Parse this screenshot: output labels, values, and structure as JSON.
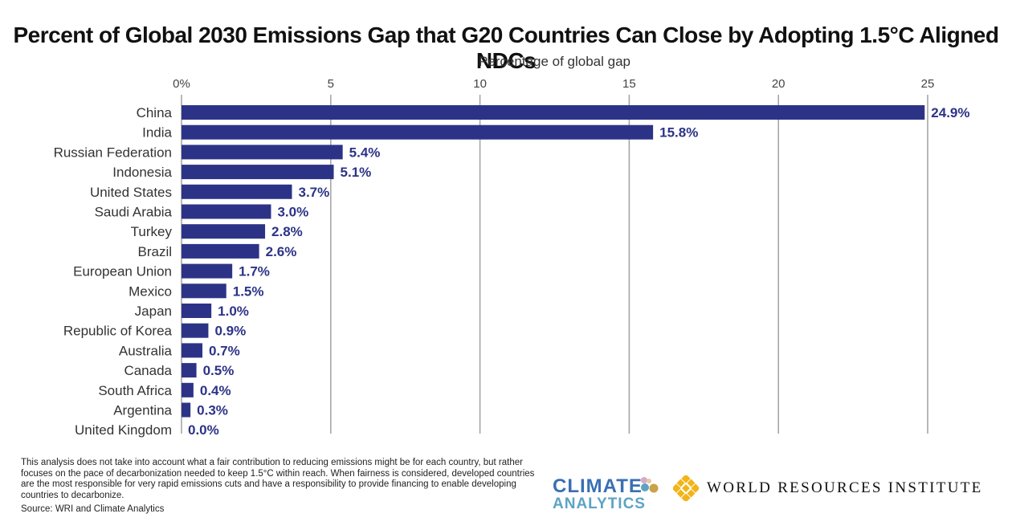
{
  "title": "Percent of Global 2030 Emissions Gap that G20 Countries Can Close by Adopting 1.5°C Aligned NDCs",
  "note": "This analysis does not take into account what a fair contribution to reducing emissions might be for each country, but rather focuses on the pace of decarbonization needed to keep 1.5°C within reach. When fairness is considered, developed countries are the most responsible for very rapid emissions cuts and have a responsibility to provide financing to enable developing countries to decarbonize.",
  "source": "Source: WRI and Climate Analytics",
  "logos": {
    "climate_analytics_line1": "CLIMATE",
    "climate_analytics_line2": "ANALYTICS",
    "wri": "WORLD RESOURCES INSTITUTE"
  },
  "colors": {
    "bar": "#2c3387",
    "label": "#2c3387",
    "grid": "#a6a6a6",
    "ca_blue": "#3a6fb3",
    "ca_teal": "#5da3c4",
    "wri_gold": "#f2b418"
  },
  "chart_data": {
    "type": "bar",
    "orientation": "horizontal",
    "xlabel": "Percentage of global gap",
    "xlim": [
      0,
      25
    ],
    "xticks": [
      "0%",
      "5",
      "10",
      "15",
      "20",
      "25"
    ],
    "grid": true,
    "categories": [
      "China",
      "India",
      "Russian Federation",
      "Indonesia",
      "United States",
      "Saudi Arabia",
      "Turkey",
      "Brazil",
      "European Union",
      "Mexico",
      "Japan",
      "Republic of Korea",
      "Australia",
      "Canada",
      "South Africa",
      "Argentina",
      "United Kingdom"
    ],
    "values": [
      24.9,
      15.8,
      5.4,
      5.1,
      3.7,
      3.0,
      2.8,
      2.6,
      1.7,
      1.5,
      1.0,
      0.9,
      0.7,
      0.5,
      0.4,
      0.3,
      0.0
    ],
    "data_labels": [
      "24.9%",
      "15.8%",
      "5.4%",
      "5.1%",
      "3.7%",
      "3.0%",
      "2.8%",
      "2.6%",
      "1.7%",
      "1.5%",
      "1.0%",
      "0.9%",
      "0.7%",
      "0.5%",
      "0.4%",
      "0.3%",
      "0.0%"
    ]
  }
}
